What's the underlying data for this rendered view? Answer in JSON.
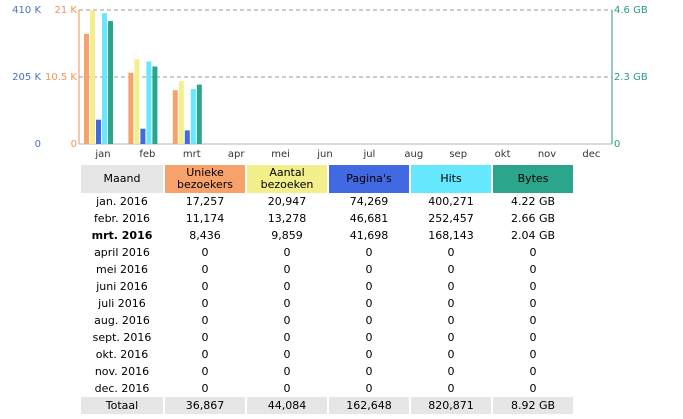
{
  "chart_data": {
    "type": "bar",
    "categories": [
      "jan",
      "feb",
      "mrt",
      "apr",
      "mei",
      "jun",
      "jul",
      "aug",
      "sep",
      "okt",
      "nov",
      "dec"
    ],
    "series": [
      {
        "name": "Unieke bezoekers",
        "color": "#f7a26a",
        "axis": "left2",
        "values": [
          17257,
          11174,
          8436,
          0,
          0,
          0,
          0,
          0,
          0,
          0,
          0,
          0
        ]
      },
      {
        "name": "Aantal bezoeken",
        "color": "#f3ef8a",
        "axis": "left2",
        "values": [
          20947,
          13278,
          9859,
          0,
          0,
          0,
          0,
          0,
          0,
          0,
          0,
          0
        ]
      },
      {
        "name": "Pagina's",
        "color": "#4169e1",
        "axis": "left1",
        "values": [
          74269,
          46681,
          41698,
          0,
          0,
          0,
          0,
          0,
          0,
          0,
          0,
          0
        ]
      },
      {
        "name": "Hits",
        "color": "#66e8ff",
        "axis": "left1",
        "values": [
          400271,
          252457,
          168143,
          0,
          0,
          0,
          0,
          0,
          0,
          0,
          0,
          0
        ]
      },
      {
        "name": "Bytes",
        "color": "#2ca58d",
        "axis": "right",
        "values": [
          4.22,
          2.66,
          2.04,
          0,
          0,
          0,
          0,
          0,
          0,
          0,
          0,
          0
        ]
      }
    ],
    "axes": {
      "left1": {
        "max": 410000,
        "ticks": [
          "410 K",
          "205 K",
          "0"
        ]
      },
      "left2": {
        "max": 21000,
        "ticks": [
          "21 K",
          "10.5 K",
          "0"
        ]
      },
      "right": {
        "max": 4.6,
        "ticks": [
          "4.6 GB",
          "2.3 GB",
          "0"
        ]
      }
    },
    "grid": "dashed midline",
    "title": "",
    "xlabel": "",
    "ylabel": ""
  },
  "table": {
    "headers": {
      "month": "Maand",
      "unique_l1": "Unieke",
      "unique_l2": "bezoekers",
      "visits_l1": "Aantal",
      "visits_l2": "bezoeken",
      "pages": "Pagina's",
      "hits": "Hits",
      "bytes": "Bytes"
    },
    "rows": [
      {
        "month": "jan. 2016",
        "unique": "17,257",
        "visits": "20,947",
        "pages": "74,269",
        "hits": "400,271",
        "bytes": "4.22 GB"
      },
      {
        "month": "febr. 2016",
        "unique": "11,174",
        "visits": "13,278",
        "pages": "46,681",
        "hits": "252,457",
        "bytes": "2.66 GB"
      },
      {
        "month": "mrt. 2016",
        "unique": "8,436",
        "visits": "9,859",
        "pages": "41,698",
        "hits": "168,143",
        "bytes": "2.04 GB"
      },
      {
        "month": "april 2016",
        "unique": "0",
        "visits": "0",
        "pages": "0",
        "hits": "0",
        "bytes": "0"
      },
      {
        "month": "mei 2016",
        "unique": "0",
        "visits": "0",
        "pages": "0",
        "hits": "0",
        "bytes": "0"
      },
      {
        "month": "juni 2016",
        "unique": "0",
        "visits": "0",
        "pages": "0",
        "hits": "0",
        "bytes": "0"
      },
      {
        "month": "juli 2016",
        "unique": "0",
        "visits": "0",
        "pages": "0",
        "hits": "0",
        "bytes": "0"
      },
      {
        "month": "aug. 2016",
        "unique": "0",
        "visits": "0",
        "pages": "0",
        "hits": "0",
        "bytes": "0"
      },
      {
        "month": "sept. 2016",
        "unique": "0",
        "visits": "0",
        "pages": "0",
        "hits": "0",
        "bytes": "0"
      },
      {
        "month": "okt. 2016",
        "unique": "0",
        "visits": "0",
        "pages": "0",
        "hits": "0",
        "bytes": "0"
      },
      {
        "month": "nov. 2016",
        "unique": "0",
        "visits": "0",
        "pages": "0",
        "hits": "0",
        "bytes": "0"
      },
      {
        "month": "dec. 2016",
        "unique": "0",
        "visits": "0",
        "pages": "0",
        "hits": "0",
        "bytes": "0"
      }
    ],
    "current_month_index": 2,
    "total": {
      "month": "Totaal",
      "unique": "36,867",
      "visits": "44,084",
      "pages": "162,648",
      "hits": "820,871",
      "bytes": "8.92 GB"
    }
  }
}
